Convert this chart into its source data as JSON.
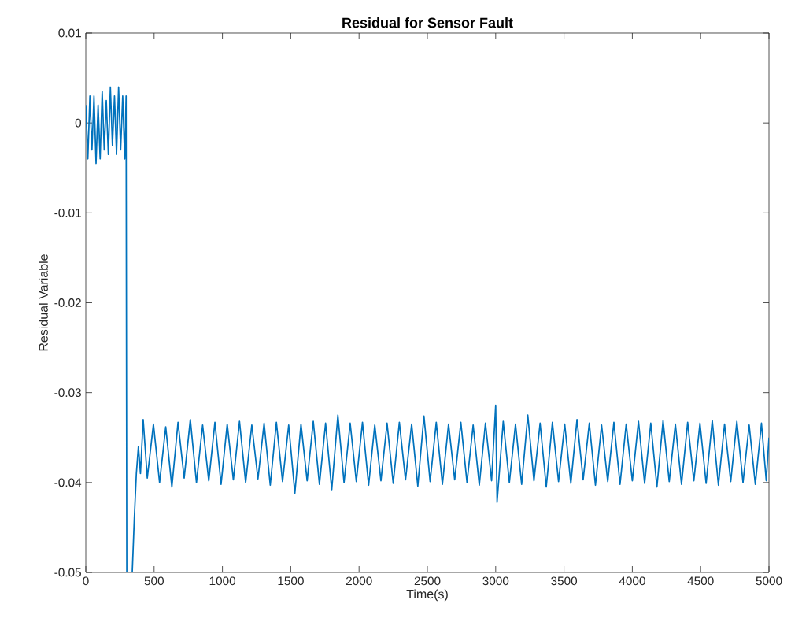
{
  "chart_data": {
    "type": "line",
    "title": "Residual for Sensor Fault",
    "xlabel": "Time(s)",
    "ylabel": "Residual Variable",
    "xlim": [
      0,
      5000
    ],
    "ylim": [
      -0.05,
      0.01
    ],
    "xticks": [
      0,
      500,
      1000,
      1500,
      2000,
      2500,
      3000,
      3500,
      4000,
      4500,
      5000
    ],
    "yticks": [
      0.01,
      0,
      -0.01,
      -0.02,
      -0.03,
      -0.04,
      -0.05
    ],
    "series": [
      {
        "color": "#0072bd",
        "x": [
          0,
          15,
          30,
          45,
          60,
          75,
          90,
          105,
          120,
          135,
          150,
          165,
          180,
          195,
          210,
          225,
          240,
          255,
          270,
          285,
          295,
          300,
          320,
          340,
          355,
          370,
          385,
          400,
          420,
          450,
          495,
          540,
          585,
          630,
          675,
          720,
          765,
          810,
          855,
          900,
          945,
          990,
          1035,
          1080,
          1125,
          1170,
          1215,
          1260,
          1305,
          1350,
          1395,
          1440,
          1485,
          1530,
          1575,
          1620,
          1665,
          1710,
          1755,
          1800,
          1845,
          1890,
          1935,
          1980,
          2025,
          2070,
          2115,
          2160,
          2205,
          2250,
          2295,
          2340,
          2385,
          2430,
          2475,
          2520,
          2565,
          2610,
          2655,
          2700,
          2745,
          2790,
          2835,
          2880,
          2925,
          2970,
          3000,
          3010,
          3055,
          3100,
          3145,
          3190,
          3235,
          3280,
          3325,
          3370,
          3415,
          3460,
          3505,
          3550,
          3595,
          3640,
          3685,
          3730,
          3775,
          3820,
          3865,
          3910,
          3955,
          4000,
          4045,
          4090,
          4135,
          4180,
          4225,
          4270,
          4315,
          4360,
          4405,
          4450,
          4495,
          4540,
          4585,
          4630,
          4675,
          4720,
          4765,
          4810,
          4855,
          4900,
          4945,
          4980,
          5000
        ],
        "values": [
          0.002,
          -0.004,
          0.003,
          -0.003,
          0.003,
          -0.0045,
          0.002,
          -0.004,
          0.0035,
          -0.003,
          0.0025,
          -0.0035,
          0.004,
          -0.0025,
          0.003,
          -0.0035,
          0.004,
          -0.003,
          0.003,
          -0.004,
          0.003,
          -0.05,
          null,
          -0.05,
          -0.044,
          -0.039,
          -0.036,
          -0.039,
          -0.033,
          -0.0395,
          -0.0335,
          -0.04,
          -0.0338,
          -0.0405,
          -0.0333,
          -0.0395,
          -0.033,
          -0.04,
          -0.0336,
          -0.0398,
          -0.0333,
          -0.0402,
          -0.0335,
          -0.0397,
          -0.0332,
          -0.04,
          -0.0336,
          -0.0396,
          -0.0334,
          -0.0403,
          -0.0333,
          -0.0399,
          -0.0336,
          -0.0412,
          -0.0335,
          -0.0398,
          -0.0332,
          -0.0402,
          -0.0334,
          -0.0408,
          -0.0325,
          -0.04,
          -0.0334,
          -0.0399,
          -0.0333,
          -0.0403,
          -0.0336,
          -0.0398,
          -0.0334,
          -0.0401,
          -0.0333,
          -0.0397,
          -0.0335,
          -0.0404,
          -0.0326,
          -0.0399,
          -0.0333,
          -0.0402,
          -0.0335,
          -0.0397,
          -0.0333,
          -0.04,
          -0.0336,
          -0.0403,
          -0.0334,
          -0.0398,
          -0.0314,
          -0.0422,
          -0.0332,
          -0.04,
          -0.0335,
          -0.0402,
          -0.0325,
          -0.0398,
          -0.0334,
          -0.0405,
          -0.0333,
          -0.0399,
          -0.0335,
          -0.0401,
          -0.033,
          -0.0397,
          -0.0334,
          -0.0403,
          -0.0336,
          -0.0399,
          -0.0333,
          -0.0402,
          -0.0335,
          -0.0398,
          -0.0332,
          -0.0401,
          -0.0334,
          -0.0405,
          -0.0331,
          -0.0399,
          -0.0335,
          -0.0402,
          -0.0333,
          -0.0398,
          -0.0334,
          -0.0401,
          -0.0331,
          -0.0403,
          -0.0335,
          -0.0399,
          -0.0332,
          -0.04,
          -0.0336,
          -0.0402,
          -0.0334,
          -0.0398,
          -0.035
        ]
      }
    ]
  }
}
